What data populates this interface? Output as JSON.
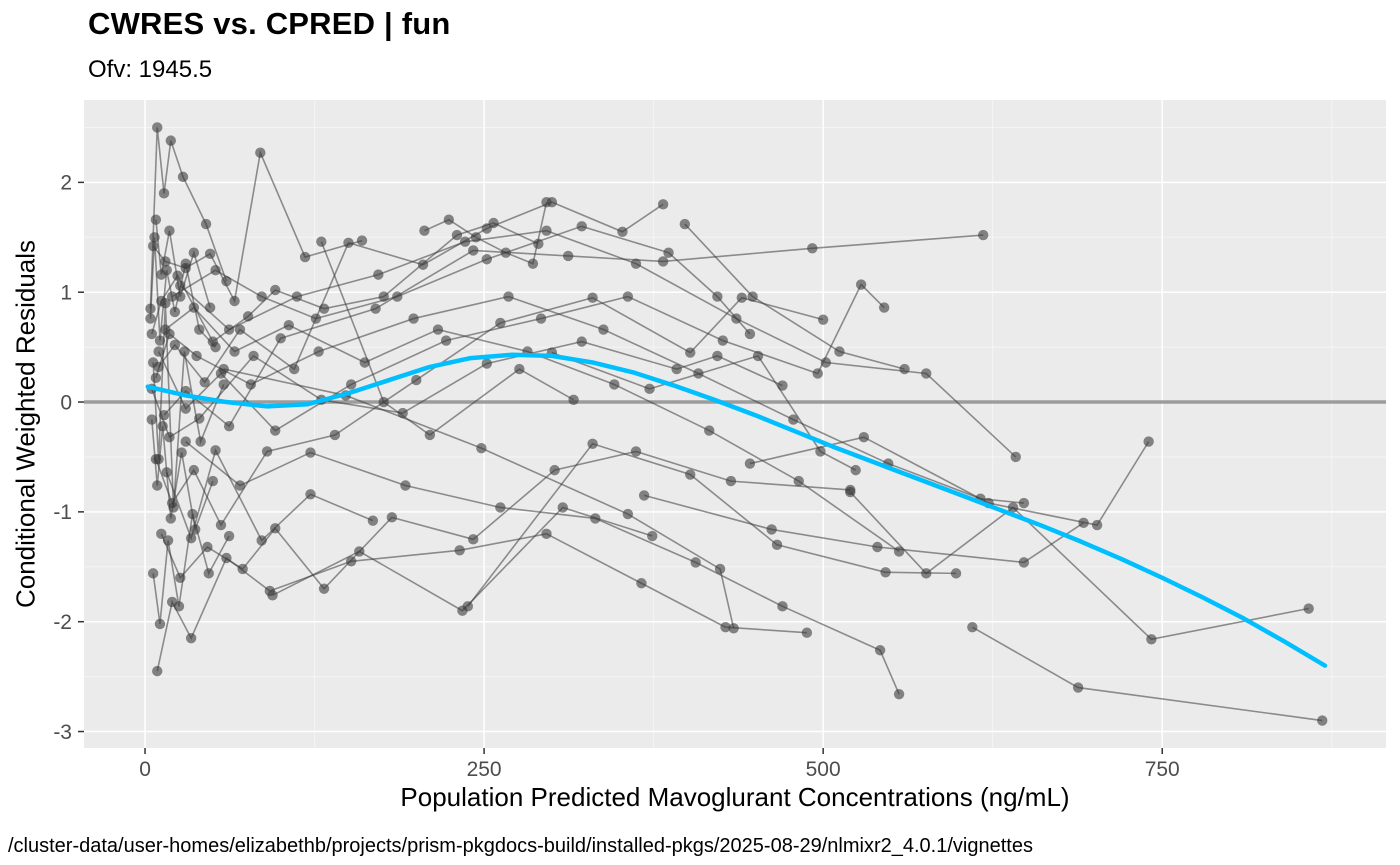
{
  "chart_data": {
    "type": "scatter",
    "title": "CWRES vs. CPRED | fun",
    "subtitle": "Ofv: 1945.5",
    "xlabel": "Population Predicted Mavoglurant Concentrations (ng/mL)",
    "ylabel": "Conditional Weighted Residuals",
    "caption": "/cluster-data/user-homes/elizabethb/projects/prism-pkgdocs-build/installed-pkgs/2025-08-29/nlmixr2_4.0.1/vignettes",
    "xlim": [
      -45,
      915
    ],
    "ylim": [
      -3.15,
      2.75
    ],
    "xticks": [
      0,
      250,
      500,
      750
    ],
    "yticks": [
      -3,
      -2,
      -1,
      0,
      1,
      2
    ],
    "xminor": [
      125,
      375,
      625,
      875
    ],
    "yminor": [
      -2.5,
      -1.5,
      -0.5,
      0.5,
      1.5,
      2.5
    ],
    "grid": true,
    "legend_position": "none",
    "reference_line_y": 0,
    "style": {
      "panel_bg": "#EBEBEB",
      "grid_major": "#FFFFFF",
      "grid_minor": "#F5F5F5",
      "point_color": "#3a3a3a",
      "line_color": "#3a3a3a",
      "smooth_color": "#00BFFF",
      "refline_color": "#9c9c9c",
      "tick_color": "#333333"
    },
    "smooth": {
      "name": "loess-smooth",
      "points": [
        [
          2,
          0.14
        ],
        [
          30,
          0.06
        ],
        [
          60,
          0.0
        ],
        [
          90,
          -0.04
        ],
        [
          120,
          -0.02
        ],
        [
          150,
          0.08
        ],
        [
          180,
          0.2
        ],
        [
          210,
          0.32
        ],
        [
          240,
          0.4
        ],
        [
          270,
          0.43
        ],
        [
          300,
          0.42
        ],
        [
          330,
          0.36
        ],
        [
          360,
          0.27
        ],
        [
          390,
          0.15
        ],
        [
          420,
          0.02
        ],
        [
          450,
          -0.12
        ],
        [
          480,
          -0.27
        ],
        [
          510,
          -0.42
        ],
        [
          540,
          -0.56
        ],
        [
          570,
          -0.7
        ],
        [
          600,
          -0.84
        ],
        [
          630,
          -0.98
        ],
        [
          660,
          -1.12
        ],
        [
          690,
          -1.27
        ],
        [
          720,
          -1.43
        ],
        [
          750,
          -1.6
        ],
        [
          780,
          -1.78
        ],
        [
          810,
          -1.97
        ],
        [
          840,
          -2.18
        ],
        [
          870,
          -2.4
        ]
      ]
    },
    "series": [
      {
        "id": "1",
        "points": [
          [
            4,
            0.85
          ],
          [
            9,
            2.5
          ],
          [
            14,
            1.9
          ],
          [
            19,
            2.38
          ],
          [
            28,
            2.05
          ],
          [
            45,
            1.62
          ],
          [
            60,
            1.1
          ]
        ]
      },
      {
        "id": "2",
        "points": [
          [
            6,
            1.42
          ],
          [
            15,
            1.28
          ],
          [
            30,
            1.22
          ],
          [
            48,
            1.35
          ],
          [
            66,
            0.92
          ],
          [
            85,
            2.27
          ],
          [
            118,
            1.32
          ],
          [
            160,
            1.47
          ]
        ]
      },
      {
        "id": "3",
        "points": [
          [
            5,
            0.62
          ],
          [
            12,
            0.92
          ],
          [
            24,
            1.15
          ],
          [
            50,
            0.55
          ],
          [
            76,
            0.78
          ],
          [
            96,
            1.02
          ],
          [
            132,
            0.85
          ],
          [
            176,
            0.96
          ],
          [
            230,
            1.52
          ],
          [
            257,
            1.63
          ],
          [
            290,
            1.44
          ]
        ]
      },
      {
        "id": "4",
        "points": [
          [
            10,
            0.32
          ],
          [
            22,
            0.52
          ],
          [
            44,
            0.18
          ],
          [
            70,
            0.66
          ],
          [
            110,
            0.3
          ],
          [
            150,
            1.45
          ],
          [
            205,
            1.25
          ],
          [
            252,
            1.58
          ],
          [
            300,
            1.82
          ],
          [
            352,
            1.55
          ],
          [
            382,
            1.8
          ]
        ]
      },
      {
        "id": "5",
        "points": [
          [
            14,
            -0.12
          ],
          [
            30,
            0.1
          ],
          [
            62,
            -0.22
          ],
          [
            100,
            0.58
          ],
          [
            170,
            0.85
          ],
          [
            242,
            1.38
          ],
          [
            312,
            1.33
          ],
          [
            382,
            1.28
          ],
          [
            492,
            1.4
          ],
          [
            618,
            1.52
          ]
        ]
      },
      {
        "id": "6",
        "points": [
          [
            8,
            -0.52
          ],
          [
            20,
            -0.92
          ],
          [
            36,
            -0.62
          ],
          [
            56,
            -1.12
          ],
          [
            90,
            -0.45
          ],
          [
            140,
            -0.3
          ],
          [
            200,
            0.2
          ],
          [
            262,
            0.72
          ],
          [
            330,
            0.95
          ],
          [
            402,
            0.45
          ],
          [
            440,
            0.95
          ],
          [
            500,
            0.75
          ]
        ]
      },
      {
        "id": "7",
        "points": [
          [
            5,
            0.12
          ],
          [
            18,
            -0.32
          ],
          [
            40,
            -0.15
          ],
          [
            80,
            0.42
          ],
          [
            130,
            0.02
          ],
          [
            190,
            -0.1
          ],
          [
            252,
            0.35
          ],
          [
            322,
            0.55
          ],
          [
            392,
            0.3
          ],
          [
            422,
            0.42
          ],
          [
            470,
            0.15
          ]
        ]
      },
      {
        "id": "8",
        "points": [
          [
            12,
            -1.2
          ],
          [
            26,
            -1.6
          ],
          [
            46,
            -1.32
          ],
          [
            72,
            -1.52
          ],
          [
            96,
            -1.15
          ],
          [
            132,
            -1.7
          ],
          [
            182,
            -1.05
          ],
          [
            242,
            -1.25
          ],
          [
            302,
            -0.62
          ],
          [
            362,
            -0.45
          ],
          [
            432,
            -0.72
          ],
          [
            520,
            -0.8
          ]
        ]
      },
      {
        "id": "9",
        "points": [
          [
            9,
            -2.45
          ],
          [
            20,
            -1.82
          ],
          [
            34,
            -2.15
          ],
          [
            60,
            -1.42
          ],
          [
            92,
            -1.72
          ],
          [
            152,
            -1.45
          ],
          [
            232,
            -1.35
          ],
          [
            296,
            -1.2
          ],
          [
            366,
            -1.65
          ],
          [
            428,
            -2.05
          ],
          [
            488,
            -2.1
          ]
        ]
      },
      {
        "id": "10",
        "points": [
          [
            238,
            -1.86
          ],
          [
            330,
            -0.38
          ],
          [
            402,
            -0.66
          ],
          [
            466,
            -1.3
          ],
          [
            546,
            -1.55
          ],
          [
            598,
            -1.56
          ]
        ]
      },
      {
        "id": "11",
        "points": [
          [
            15,
            0.66
          ],
          [
            36,
            0.86
          ],
          [
            66,
            0.46
          ],
          [
            106,
            0.7
          ],
          [
            162,
            0.36
          ],
          [
            216,
            0.66
          ],
          [
            282,
            0.46
          ],
          [
            346,
            0.16
          ],
          [
            416,
            -0.26
          ],
          [
            482,
            -0.72
          ],
          [
            556,
            -1.36
          ]
        ]
      },
      {
        "id": "12",
        "points": [
          [
            20,
            0.96
          ],
          [
            52,
            1.2
          ],
          [
            86,
            0.96
          ],
          [
            126,
            0.76
          ],
          [
            186,
            0.96
          ],
          [
            252,
            1.3
          ],
          [
            322,
            1.6
          ],
          [
            386,
            1.36
          ],
          [
            422,
            0.96
          ],
          [
            446,
            0.62
          ]
        ]
      },
      {
        "id": "13",
        "points": [
          [
            10,
            0.46
          ],
          [
            30,
            -0.06
          ],
          [
            56,
            0.26
          ],
          [
            96,
            -0.26
          ],
          [
            152,
            0.16
          ],
          [
            222,
            0.56
          ],
          [
            292,
            0.76
          ],
          [
            356,
            0.96
          ],
          [
            426,
            0.56
          ],
          [
            496,
            0.26
          ],
          [
            528,
            1.07
          ],
          [
            545,
            0.86
          ]
        ]
      },
      {
        "id": "14",
        "points": [
          [
            26,
            1.06
          ],
          [
            62,
            0.66
          ],
          [
            112,
            0.96
          ],
          [
            172,
            1.16
          ],
          [
            236,
            1.46
          ],
          [
            296,
            1.56
          ],
          [
            362,
            1.26
          ],
          [
            436,
            0.76
          ],
          [
            502,
            0.36
          ],
          [
            576,
            0.26
          ],
          [
            642,
            -0.5
          ]
        ]
      },
      {
        "id": "15",
        "points": [
          [
            8,
            0.22
          ],
          [
            18,
            0.62
          ],
          [
            38,
            0.42
          ],
          [
            78,
            0.16
          ],
          [
            128,
            0.46
          ],
          [
            198,
            0.76
          ],
          [
            268,
            0.96
          ],
          [
            338,
            0.66
          ],
          [
            408,
            0.26
          ],
          [
            478,
            -0.16
          ],
          [
            548,
            -0.56
          ],
          [
            616,
            -0.88
          ],
          [
            648,
            -0.92
          ]
        ]
      },
      {
        "id": "16",
        "points": [
          [
            30,
            -0.36
          ],
          [
            70,
            -0.76
          ],
          [
            122,
            -0.46
          ],
          [
            192,
            -0.76
          ],
          [
            262,
            -0.96
          ],
          [
            332,
            -1.06
          ],
          [
            406,
            -1.46
          ],
          [
            470,
            -1.86
          ],
          [
            542,
            -2.26
          ],
          [
            556,
            -2.66
          ]
        ]
      },
      {
        "id": "17",
        "points": [
          [
            610,
            -2.05
          ],
          [
            688,
            -2.6
          ],
          [
            868,
            -2.9
          ]
        ]
      },
      {
        "id": "18",
        "points": [
          [
            520,
            -0.82
          ],
          [
            576,
            -1.56
          ],
          [
            640,
            -0.96
          ],
          [
            742,
            -2.16
          ],
          [
            858,
            -1.88
          ]
        ]
      },
      {
        "id": "19",
        "points": [
          [
            446,
            -0.56
          ],
          [
            530,
            -0.32
          ],
          [
            622,
            -0.92
          ],
          [
            702,
            -1.12
          ],
          [
            740,
            -0.36
          ]
        ]
      },
      {
        "id": "20",
        "points": [
          [
            368,
            -0.85
          ],
          [
            462,
            -1.16
          ],
          [
            540,
            -1.32
          ],
          [
            648,
            -1.46
          ],
          [
            692,
            -1.1
          ]
        ]
      },
      {
        "id": "21",
        "points": [
          [
            4,
            0.76
          ],
          [
            7,
            1.5
          ],
          [
            11,
            0.56
          ],
          [
            16,
            1.2
          ],
          [
            22,
            0.82
          ],
          [
            30,
            1.26
          ],
          [
            40,
            0.66
          ],
          [
            52,
            0.5
          ]
        ]
      },
      {
        "id": "22",
        "points": [
          [
            5,
            -0.16
          ],
          [
            9,
            -0.76
          ],
          [
            13,
            -0.22
          ],
          [
            19,
            -1.06
          ],
          [
            27,
            -0.46
          ],
          [
            37,
            -1.16
          ],
          [
            50,
            -0.72
          ]
        ]
      },
      {
        "id": "23",
        "points": [
          [
            6,
            0.36
          ],
          [
            10,
            -0.52
          ],
          [
            15,
            0.9
          ],
          [
            21,
            -0.96
          ],
          [
            29,
            0.46
          ],
          [
            41,
            -0.36
          ],
          [
            58,
            0.16
          ]
        ]
      },
      {
        "id": "24",
        "points": [
          [
            8,
            1.66
          ],
          [
            12,
            1.16
          ],
          [
            18,
            1.56
          ],
          [
            26,
            0.96
          ],
          [
            36,
            1.36
          ],
          [
            48,
            0.86
          ]
        ]
      },
      {
        "id": "25",
        "points": [
          [
            6,
            -1.56
          ],
          [
            11,
            -2.02
          ],
          [
            17,
            -1.26
          ],
          [
            25,
            -1.86
          ],
          [
            35,
            -1.02
          ],
          [
            47,
            -1.56
          ],
          [
            62,
            -1.22
          ]
        ]
      },
      {
        "id": "26",
        "points": [
          [
            206,
            1.56
          ],
          [
            224,
            1.66
          ],
          [
            244,
            1.5
          ],
          [
            266,
            1.36
          ],
          [
            286,
            1.26
          ],
          [
            296,
            1.82
          ]
        ]
      },
      {
        "id": "27",
        "points": [
          [
            94,
            -1.76
          ],
          [
            158,
            -1.36
          ],
          [
            234,
            -1.9
          ],
          [
            308,
            -0.96
          ],
          [
            374,
            -1.22
          ]
        ]
      },
      {
        "id": "28",
        "points": [
          [
            58,
            0.3
          ],
          [
            148,
            0.06
          ],
          [
            248,
            -0.42
          ],
          [
            356,
            -1.02
          ],
          [
            424,
            -1.52
          ],
          [
            434,
            -2.06
          ]
        ]
      },
      {
        "id": "29",
        "points": [
          [
            16,
            -0.64
          ],
          [
            34,
            -1.24
          ],
          [
            52,
            -0.44
          ],
          [
            86,
            -1.26
          ],
          [
            122,
            -0.84
          ],
          [
            168,
            -1.08
          ]
        ]
      },
      {
        "id": "30",
        "points": [
          [
            398,
            1.62
          ],
          [
            448,
            0.96
          ],
          [
            512,
            0.46
          ],
          [
            560,
            0.3
          ]
        ]
      },
      {
        "id": "31",
        "points": [
          [
            300,
            0.45
          ],
          [
            372,
            0.12
          ],
          [
            452,
            0.42
          ],
          [
            498,
            -0.45
          ],
          [
            524,
            -0.62
          ]
        ]
      },
      {
        "id": "32",
        "points": [
          [
            130,
            1.46
          ],
          [
            176,
            0.0
          ],
          [
            210,
            -0.3
          ],
          [
            276,
            0.3
          ],
          [
            316,
            0.02
          ]
        ]
      }
    ]
  }
}
